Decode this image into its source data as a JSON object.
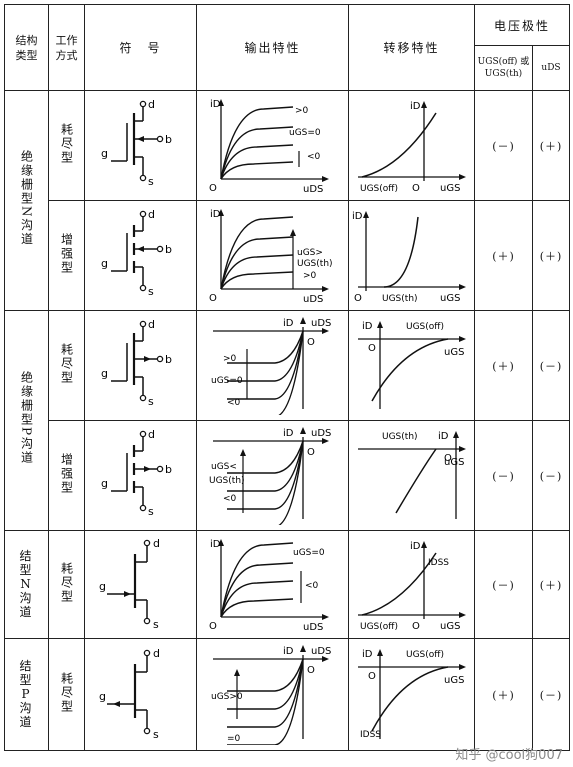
{
  "header": {
    "struct_type": "结构类型",
    "work_mode": "工作方式",
    "symbol": "符　号",
    "output": "输出特性",
    "transfer": "转移特性",
    "polarity": "电压极性",
    "ugs_col": "UGS(off) 或 UGS(th)",
    "uds_col": "uDS"
  },
  "groups": [
    {
      "type": "绝缘栅型N沟道"
    },
    {
      "type": "绝缘栅型P沟道"
    },
    {
      "type": "结型N沟道"
    },
    {
      "type": "结型P沟道"
    }
  ],
  "rows": [
    {
      "mode": "耗尽型",
      "ugs": "(－)",
      "uds": "(＋)",
      "out": {
        "id": "iD",
        "uds": "uDS",
        "o": "O",
        "l1": ">0",
        "l2": "uGS=0",
        "l3": "<0"
      },
      "tr": {
        "id": "iD",
        "o": "O",
        "param": "UGS(off)",
        "ugs": "uGS"
      }
    },
    {
      "mode": "增强型",
      "ugs": "(＋)",
      "uds": "(＋)",
      "out": {
        "id": "iD",
        "uds": "uDS",
        "o": "O",
        "l1": "uGS>",
        "l2": "UGS(th)",
        "l3": ">0"
      },
      "tr": {
        "id": "iD",
        "o": "O",
        "param": "UGS(th)",
        "ugs": "uGS"
      }
    },
    {
      "mode": "耗尽型",
      "ugs": "(＋)",
      "uds": "(－)",
      "out": {
        "id": "iD",
        "uds": "uDS",
        "o": "O",
        "l1": ">0",
        "l2": "uGS=0",
        "l3": "<0"
      },
      "tr": {
        "id": "iD",
        "o": "O",
        "param": "UGS(off)",
        "ugs": "uGS"
      }
    },
    {
      "mode": "增强型",
      "ugs": "(－)",
      "uds": "(－)",
      "out": {
        "id": "iD",
        "uds": "uDS",
        "o": "O",
        "l1": "uGS<",
        "l2": "UGS(th)",
        "l3": "<0"
      },
      "tr": {
        "id": "iD",
        "o": "O",
        "param": "UGS(th)",
        "ugs": "uGS"
      }
    },
    {
      "mode": "耗尽型",
      "ugs": "(－)",
      "uds": "(＋)",
      "out": {
        "id": "iD",
        "uds": "uDS",
        "o": "O",
        "l1": "uGS=0",
        "l2": "<0",
        "l3": ""
      },
      "tr": {
        "id": "iD",
        "o": "O",
        "param": "UGS(off)",
        "ugs": "uGS",
        "idss": "IDSS"
      }
    },
    {
      "mode": "耗尽型",
      "ugs": "(＋)",
      "uds": "(－)",
      "out": {
        "id": "iD",
        "uds": "uDS",
        "o": "O",
        "l1": "uGS>0",
        "l2": "=0",
        "l3": ""
      },
      "tr": {
        "id": "iD",
        "o": "O",
        "param": "UGS(off)",
        "ugs": "uGS",
        "idss": "IDSS"
      }
    }
  ],
  "symbol_labels": {
    "d": "d",
    "g": "g",
    "s": "s",
    "b": "b"
  },
  "watermark": "知乎 @cool狗007"
}
